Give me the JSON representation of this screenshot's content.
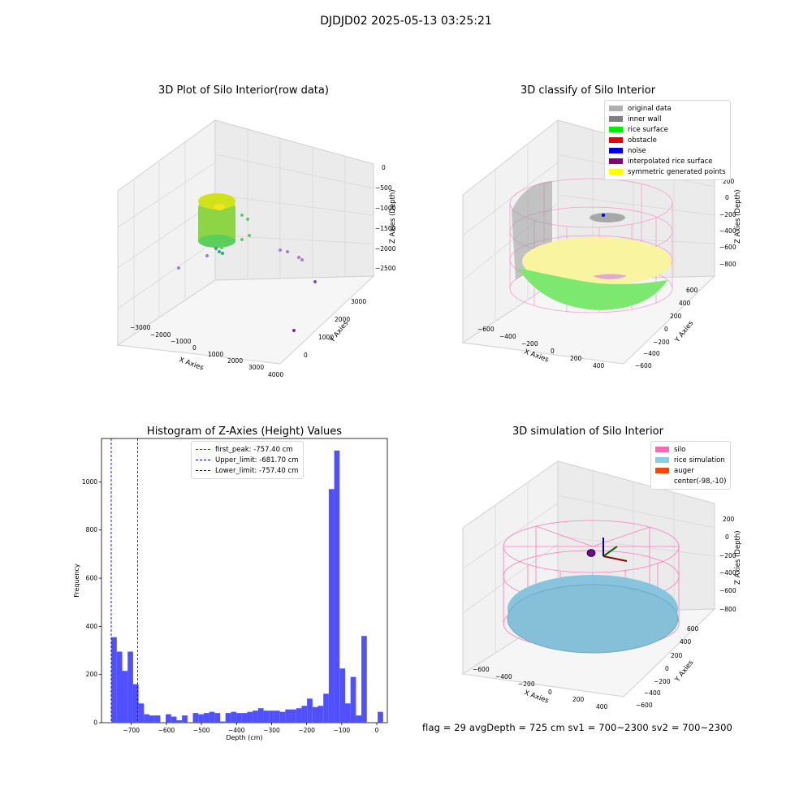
{
  "suptitle": "DJDJD02 2025-05-13 03:25:21",
  "panel1": {
    "title": "3D Plot of Silo Interior(row data)",
    "xlabel": "X Axies",
    "ylabel": "Y Axies",
    "zlabel": "Z Axies (Depth)",
    "xticks": [
      "−3000",
      "−2000",
      "−1000",
      "0",
      "1000",
      "2000",
      "3000",
      "4000"
    ],
    "yticks": [
      "0",
      "1000",
      "2000",
      "3000"
    ],
    "zticks": [
      "0",
      "−500",
      "−1000",
      "−1500",
      "−2000",
      "−2500"
    ]
  },
  "panel2": {
    "title": "3D classify of Silo Interior",
    "xlabel": "X Axies",
    "ylabel": "Y Axies",
    "zlabel": "Z Axies (Depth)",
    "xticks": [
      "−600",
      "−400",
      "−200",
      "0",
      "200",
      "400"
    ],
    "yticks": [
      "600",
      "400",
      "200",
      "0",
      "−200",
      "−400",
      "−600"
    ],
    "zticks": [
      "200",
      "0",
      "−200",
      "−400",
      "−600",
      "−800"
    ],
    "legend": [
      {
        "label": "original data",
        "color": "#b0b0b0"
      },
      {
        "label": "inner wall",
        "color": "#808080"
      },
      {
        "label": "rice surface",
        "color": "#00ee00"
      },
      {
        "label": "obstacle",
        "color": "#ee0000"
      },
      {
        "label": "noise",
        "color": "#0000dd"
      },
      {
        "label": "interpolated rice surface",
        "color": "#800080"
      },
      {
        "label": "symmetric generated points",
        "color": "#ffff00"
      }
    ]
  },
  "panel3": {
    "title": "Histogram of Z-Axies (Height) Values",
    "legend": [
      {
        "label": "first_peak: -757.40 cm",
        "color": "#ff0000"
      },
      {
        "label": "Upper_limit: -681.70 cm",
        "color": "#0000cc"
      },
      {
        "label": "Lower_limit: -757.40 cm",
        "color": "#0000cc"
      }
    ]
  },
  "panel4": {
    "title": "3D simulation of Silo Interior",
    "xlabel": "X Axies",
    "ylabel": "Y Axies",
    "zlabel": "Z Axies (Depth)",
    "xticks": [
      "−600",
      "−400",
      "−200",
      "0",
      "200",
      "400"
    ],
    "yticks": [
      "600",
      "400",
      "200",
      "0",
      "−200",
      "−400",
      "−600"
    ],
    "zticks": [
      "200",
      "0",
      "−200",
      "−400",
      "−600",
      "−800"
    ],
    "legend": [
      {
        "label": "silo",
        "color": "#ff69b4"
      },
      {
        "label": "rice simulation",
        "color": "#87ceeb"
      },
      {
        "label": "auger",
        "color": "#ff4500"
      },
      {
        "label": "center(-98,-10)",
        "color": "#ffffff"
      }
    ]
  },
  "status": "flag = 29  avgDepth = 725 cm  sv1 = 700~2300  sv2 = 700~2300",
  "chart_data": {
    "type": "bar",
    "title": "Histogram of Z-Axies (Height) Values",
    "xlabel": "Depth (cm)",
    "ylabel": "Frequency",
    "xlim": [
      -785,
      30
    ],
    "ylim": [
      0,
      1180
    ],
    "xticks": [
      -700,
      -600,
      -500,
      -400,
      -300,
      -200,
      -100,
      0
    ],
    "yticks": [
      0,
      200,
      400,
      600,
      800,
      1000
    ],
    "bin_width": 15.5,
    "x": [
      -749.2,
      -733.7,
      -718.2,
      -702.7,
      -687.2,
      -671.7,
      -656.2,
      -640.7,
      -625.2,
      -609.7,
      -594.2,
      -578.7,
      -563.2,
      -547.7,
      -532.2,
      -516.7,
      -501.2,
      -485.7,
      -470.2,
      -454.7,
      -439.2,
      -423.7,
      -408.2,
      -392.7,
      -377.2,
      -361.7,
      -346.2,
      -330.7,
      -315.2,
      -299.7,
      -284.2,
      -268.7,
      -253.2,
      -237.7,
      -222.2,
      -206.7,
      -191.2,
      -175.7,
      -160.2,
      -144.7,
      -129.2,
      -113.7,
      -98.2,
      -82.7,
      -67.2,
      -51.7,
      -36.2,
      -20.7,
      -5.2,
      10.3
    ],
    "values": [
      355,
      295,
      215,
      295,
      160,
      80,
      35,
      30,
      30,
      0,
      35,
      25,
      10,
      30,
      0,
      40,
      35,
      40,
      45,
      40,
      5,
      40,
      45,
      40,
      40,
      45,
      50,
      60,
      50,
      50,
      50,
      45,
      55,
      55,
      60,
      70,
      100,
      65,
      70,
      120,
      970,
      1130,
      225,
      80,
      190,
      30,
      360,
      0,
      0,
      45
    ],
    "lines": [
      {
        "name": "first_peak: -757.40 cm",
        "x": -757.4,
        "color": "#ff0000"
      },
      {
        "name": "Upper_limit: -681.70 cm",
        "x": -681.7,
        "color": "#0000cc"
      },
      {
        "name": "Lower_limit: -757.40 cm",
        "x": -757.4,
        "color": "#0000cc"
      }
    ],
    "bar_color": "#5050ff"
  }
}
